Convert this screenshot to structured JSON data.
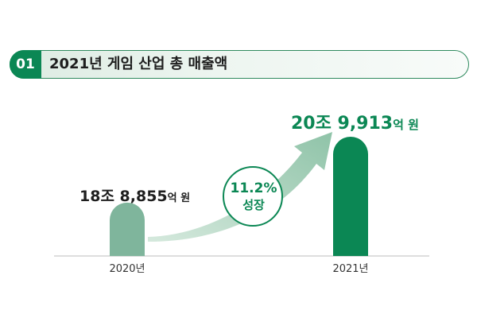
{
  "header": {
    "badge": "01",
    "title": "2021년 게임 산업  총 매출액"
  },
  "labels": {
    "y2020_value": "18조 8,855",
    "y2020_unit": "억 원",
    "y2021_value": "20조 9,913",
    "y2021_unit": "억 원",
    "growth_pct": "11.2%",
    "growth_word": "성장"
  },
  "chart_data": {
    "type": "bar",
    "title": "2021년 게임 산업  총 매출액",
    "categories": [
      "2020년",
      "2021년"
    ],
    "values": [
      188855,
      209913
    ],
    "value_unit": "억 원",
    "value_labels": [
      "18조 8,855억 원",
      "20조 9,913억 원"
    ],
    "growth_annotation": "11.2% 성장",
    "colors": {
      "bar_2020": "#7fb59c",
      "bar_2021": "#0b8754",
      "accent": "#0b8754",
      "arrow": "#a6cfb9"
    },
    "grid": false,
    "legend": "none"
  }
}
